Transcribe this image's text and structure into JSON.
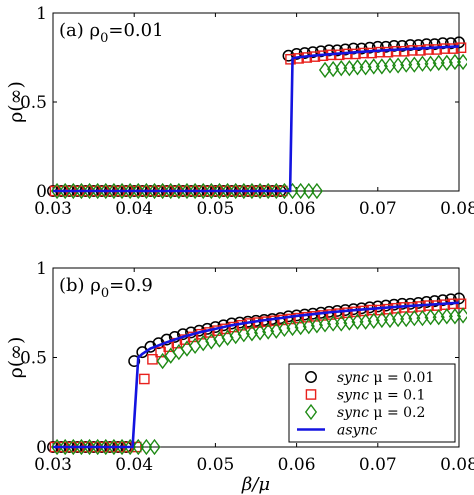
{
  "chart_data": [
    {
      "type": "scatter",
      "panel_label": "(a) ρ",
      "panel_label_sub": "0",
      "panel_label_value": "=0.01",
      "ylabel": "ρ(∞)",
      "xlabel": "",
      "xlim": [
        0.03,
        0.08
      ],
      "ylim": [
        0,
        1
      ],
      "xticks": [
        "0.03",
        "0.04",
        "0.05",
        "0.06",
        "0.07",
        "0.08"
      ],
      "yticks": [
        "0",
        "0.5",
        "1"
      ],
      "x_offset": {
        "sync mu=0.01": 0.0,
        "sync mu=0.1": 0.0002,
        "sync mu=0.2": 0.0004
      },
      "series": [
        {
          "name": "sync μ = 0.01",
          "marker": "circle",
          "color": "#000000",
          "x": [
            0.03,
            0.031,
            0.032,
            0.033,
            0.034,
            0.035,
            0.036,
            0.037,
            0.038,
            0.039,
            0.04,
            0.041,
            0.042,
            0.043,
            0.044,
            0.045,
            0.046,
            0.047,
            0.048,
            0.049,
            0.05,
            0.051,
            0.052,
            0.053,
            0.054,
            0.055,
            0.056,
            0.057,
            0.058,
            0.059,
            0.06,
            0.061,
            0.062,
            0.063,
            0.064,
            0.065,
            0.066,
            0.067,
            0.068,
            0.069,
            0.07,
            0.071,
            0.072,
            0.073,
            0.074,
            0.075,
            0.076,
            0.077,
            0.078,
            0.079,
            0.08
          ],
          "y": [
            0,
            0,
            0,
            0,
            0,
            0,
            0,
            0,
            0,
            0,
            0,
            0,
            0,
            0,
            0,
            0,
            0,
            0,
            0,
            0,
            0,
            0,
            0,
            0,
            0,
            0,
            0,
            0,
            0,
            0.76,
            0.77,
            0.775,
            0.78,
            0.785,
            0.79,
            0.79,
            0.795,
            0.8,
            0.8,
            0.805,
            0.81,
            0.81,
            0.815,
            0.815,
            0.82,
            0.82,
            0.825,
            0.825,
            0.83,
            0.83,
            0.835
          ]
        },
        {
          "name": "sync μ = 0.1",
          "marker": "square",
          "color": "#e8201c",
          "x": [
            0.03,
            0.031,
            0.032,
            0.033,
            0.034,
            0.035,
            0.036,
            0.037,
            0.038,
            0.039,
            0.04,
            0.041,
            0.042,
            0.043,
            0.044,
            0.045,
            0.046,
            0.047,
            0.048,
            0.049,
            0.05,
            0.051,
            0.052,
            0.053,
            0.054,
            0.055,
            0.056,
            0.057,
            0.058,
            0.059,
            0.06,
            0.061,
            0.062,
            0.063,
            0.064,
            0.065,
            0.066,
            0.067,
            0.068,
            0.069,
            0.07,
            0.071,
            0.072,
            0.073,
            0.074,
            0.075,
            0.076,
            0.077,
            0.078,
            0.079,
            0.08
          ],
          "y": [
            0,
            0,
            0,
            0,
            0,
            0,
            0,
            0,
            0,
            0,
            0,
            0,
            0,
            0,
            0,
            0,
            0,
            0,
            0,
            0,
            0,
            0,
            0,
            0,
            0,
            0,
            0,
            0,
            0,
            0.74,
            0.745,
            0.75,
            0.755,
            0.76,
            0.765,
            0.765,
            0.77,
            0.77,
            0.775,
            0.775,
            0.78,
            0.78,
            0.785,
            0.785,
            0.79,
            0.79,
            0.795,
            0.795,
            0.8,
            0.8,
            0.805
          ]
        },
        {
          "name": "sync μ = 0.2",
          "marker": "diamond",
          "color": "#1e8a14",
          "x": [
            0.03,
            0.031,
            0.032,
            0.033,
            0.034,
            0.035,
            0.036,
            0.037,
            0.038,
            0.039,
            0.04,
            0.041,
            0.042,
            0.043,
            0.044,
            0.045,
            0.046,
            0.047,
            0.048,
            0.049,
            0.05,
            0.051,
            0.052,
            0.053,
            0.054,
            0.055,
            0.056,
            0.057,
            0.058,
            0.059,
            0.06,
            0.061,
            0.062,
            0.063,
            0.064,
            0.065,
            0.066,
            0.067,
            0.068,
            0.069,
            0.07,
            0.071,
            0.072,
            0.073,
            0.074,
            0.075,
            0.076,
            0.077,
            0.078,
            0.079,
            0.08
          ],
          "y": [
            0,
            0,
            0,
            0,
            0,
            0,
            0,
            0,
            0,
            0,
            0,
            0,
            0,
            0,
            0,
            0,
            0,
            0,
            0,
            0,
            0,
            0,
            0,
            0,
            0,
            0,
            0,
            0,
            0,
            0,
            0,
            0,
            0,
            0.68,
            0.685,
            0.69,
            0.69,
            0.695,
            0.695,
            0.7,
            0.7,
            0.705,
            0.705,
            0.71,
            0.71,
            0.715,
            0.715,
            0.72,
            0.72,
            0.725,
            0.725
          ]
        },
        {
          "name": "async",
          "marker": "line",
          "color": "#1414e0",
          "x": [
            0.03,
            0.058,
            0.0592,
            0.0595,
            0.06,
            0.062,
            0.064,
            0.066,
            0.068,
            0.07,
            0.072,
            0.074,
            0.076,
            0.078,
            0.08
          ],
          "y": [
            0,
            0,
            0,
            0.745,
            0.75,
            0.76,
            0.768,
            0.775,
            0.782,
            0.788,
            0.793,
            0.798,
            0.803,
            0.808,
            0.812
          ]
        }
      ]
    },
    {
      "type": "scatter",
      "panel_label": "(b) ρ",
      "panel_label_sub": "0",
      "panel_label_value": "=0.9",
      "ylabel": "ρ(∞)",
      "xlabel": "β/μ",
      "xlim": [
        0.03,
        0.08
      ],
      "ylim": [
        0,
        1
      ],
      "xticks": [
        "0.03",
        "0.04",
        "0.05",
        "0.06",
        "0.07",
        "0.08"
      ],
      "yticks": [
        "0",
        "0.5",
        "1"
      ],
      "legend_position": "bottom-right",
      "series": [
        {
          "name": "sync μ = 0.01",
          "marker": "circle",
          "color": "#000000",
          "x": [
            0.03,
            0.031,
            0.032,
            0.033,
            0.034,
            0.035,
            0.036,
            0.037,
            0.038,
            0.039,
            0.04,
            0.041,
            0.042,
            0.043,
            0.044,
            0.045,
            0.046,
            0.047,
            0.048,
            0.049,
            0.05,
            0.051,
            0.052,
            0.053,
            0.054,
            0.055,
            0.056,
            0.057,
            0.058,
            0.059,
            0.06,
            0.061,
            0.062,
            0.063,
            0.064,
            0.065,
            0.066,
            0.067,
            0.068,
            0.069,
            0.07,
            0.071,
            0.072,
            0.073,
            0.074,
            0.075,
            0.076,
            0.077,
            0.078,
            0.079,
            0.08
          ],
          "y": [
            0,
            0,
            0,
            0,
            0,
            0,
            0,
            0,
            0,
            0,
            0.48,
            0.53,
            0.56,
            0.58,
            0.6,
            0.615,
            0.63,
            0.64,
            0.65,
            0.66,
            0.67,
            0.68,
            0.69,
            0.695,
            0.7,
            0.705,
            0.71,
            0.715,
            0.72,
            0.73,
            0.735,
            0.74,
            0.745,
            0.75,
            0.755,
            0.76,
            0.765,
            0.77,
            0.775,
            0.78,
            0.785,
            0.79,
            0.795,
            0.8,
            0.8,
            0.805,
            0.81,
            0.815,
            0.82,
            0.825,
            0.83
          ]
        },
        {
          "name": "sync μ = 0.1",
          "marker": "square",
          "color": "#e8201c",
          "x": [
            0.03,
            0.031,
            0.032,
            0.033,
            0.034,
            0.035,
            0.036,
            0.037,
            0.038,
            0.039,
            0.04,
            0.041,
            0.042,
            0.043,
            0.044,
            0.045,
            0.046,
            0.047,
            0.048,
            0.049,
            0.05,
            0.051,
            0.052,
            0.053,
            0.054,
            0.055,
            0.056,
            0.057,
            0.058,
            0.059,
            0.06,
            0.061,
            0.062,
            0.063,
            0.064,
            0.065,
            0.066,
            0.067,
            0.068,
            0.069,
            0.07,
            0.071,
            0.072,
            0.073,
            0.074,
            0.075,
            0.076,
            0.077,
            0.078,
            0.079,
            0.08
          ],
          "y": [
            0,
            0,
            0,
            0,
            0,
            0,
            0,
            0,
            0,
            0,
            0,
            0.38,
            0.49,
            0.53,
            0.56,
            0.58,
            0.6,
            0.615,
            0.63,
            0.64,
            0.65,
            0.66,
            0.67,
            0.68,
            0.69,
            0.695,
            0.7,
            0.705,
            0.71,
            0.715,
            0.72,
            0.725,
            0.73,
            0.735,
            0.74,
            0.745,
            0.75,
            0.755,
            0.76,
            0.765,
            0.765,
            0.77,
            0.775,
            0.78,
            0.78,
            0.785,
            0.79,
            0.79,
            0.795,
            0.8,
            0.8
          ]
        },
        {
          "name": "sync μ = 0.2",
          "marker": "diamond",
          "color": "#1e8a14",
          "x": [
            0.03,
            0.031,
            0.032,
            0.033,
            0.034,
            0.035,
            0.036,
            0.037,
            0.038,
            0.039,
            0.04,
            0.041,
            0.042,
            0.043,
            0.044,
            0.045,
            0.046,
            0.047,
            0.048,
            0.049,
            0.05,
            0.051,
            0.052,
            0.053,
            0.054,
            0.055,
            0.056,
            0.057,
            0.058,
            0.059,
            0.06,
            0.061,
            0.062,
            0.063,
            0.064,
            0.065,
            0.066,
            0.067,
            0.068,
            0.069,
            0.07,
            0.071,
            0.072,
            0.073,
            0.074,
            0.075,
            0.076,
            0.077,
            0.078,
            0.079,
            0.08
          ],
          "y": [
            0,
            0,
            0,
            0,
            0,
            0,
            0,
            0,
            0,
            0,
            0,
            0,
            0,
            0.48,
            0.51,
            0.53,
            0.55,
            0.565,
            0.58,
            0.59,
            0.6,
            0.61,
            0.62,
            0.63,
            0.635,
            0.64,
            0.645,
            0.65,
            0.66,
            0.665,
            0.67,
            0.675,
            0.68,
            0.685,
            0.69,
            0.69,
            0.695,
            0.7,
            0.7,
            0.705,
            0.71,
            0.71,
            0.715,
            0.715,
            0.72,
            0.72,
            0.725,
            0.725,
            0.73,
            0.73,
            0.735
          ]
        },
        {
          "name": "async",
          "marker": "line",
          "color": "#1414e0",
          "x": [
            0.03,
            0.0398,
            0.0405,
            0.041,
            0.042,
            0.044,
            0.046,
            0.048,
            0.05,
            0.052,
            0.054,
            0.056,
            0.058,
            0.06,
            0.062,
            0.064,
            0.066,
            0.068,
            0.07,
            0.072,
            0.074,
            0.076,
            0.078,
            0.08
          ],
          "y": [
            0,
            0,
            0.5,
            0.52,
            0.55,
            0.585,
            0.615,
            0.64,
            0.66,
            0.68,
            0.695,
            0.708,
            0.72,
            0.732,
            0.742,
            0.752,
            0.76,
            0.768,
            0.775,
            0.782,
            0.788,
            0.794,
            0.8,
            0.806
          ]
        }
      ]
    }
  ],
  "legend": {
    "entries": [
      {
        "label_italic": "sync",
        "label_rest": " μ = 0.01",
        "marker": "circle",
        "color": "#000000"
      },
      {
        "label_italic": "sync",
        "label_rest": " μ = 0.1",
        "marker": "square",
        "color": "#e8201c"
      },
      {
        "label_italic": "sync",
        "label_rest": " μ = 0.2",
        "marker": "diamond",
        "color": "#1e8a14"
      },
      {
        "label_italic": "async",
        "label_rest": "",
        "marker": "line",
        "color": "#1414e0"
      }
    ]
  }
}
